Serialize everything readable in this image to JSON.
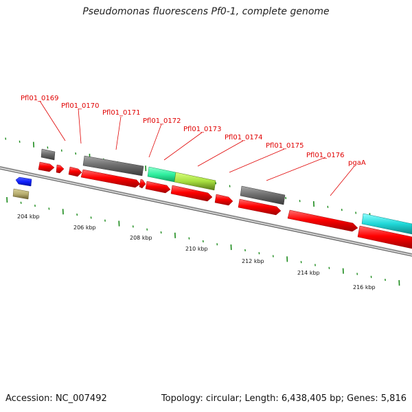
{
  "title": "Pseudomonas fluorescens Pf0-1, complete genome",
  "footer": {
    "accession": "Accession: NC_007492",
    "summary": "Topology: circular; Length: 6,438,405 bp; Genes: 5,816"
  },
  "colors": {
    "gene_red": "#ff0000",
    "gene_grey": "#707070",
    "gene_blue": "#1020ff",
    "gene_olive": "#b8ae70",
    "gene_green": "#30f0a0",
    "gene_yellowgreen": "#a8e040",
    "gene_cyan": "#20d8d8",
    "backbone": "#808080",
    "tick": "#1a8a1a",
    "label": "#e00000"
  },
  "scale_labels": [
    "204 kbp",
    "206 kbp",
    "208 kbp",
    "210 kbp",
    "212 kbp",
    "214 kbp",
    "216 kbp"
  ],
  "gene_labels": [
    "Pfl01_0169",
    "Pfl01_0170",
    "Pfl01_0171",
    "Pfl01_0172",
    "Pfl01_0173",
    "Pfl01_0174",
    "Pfl01_0175",
    "Pfl01_0176",
    "pgaA"
  ]
}
